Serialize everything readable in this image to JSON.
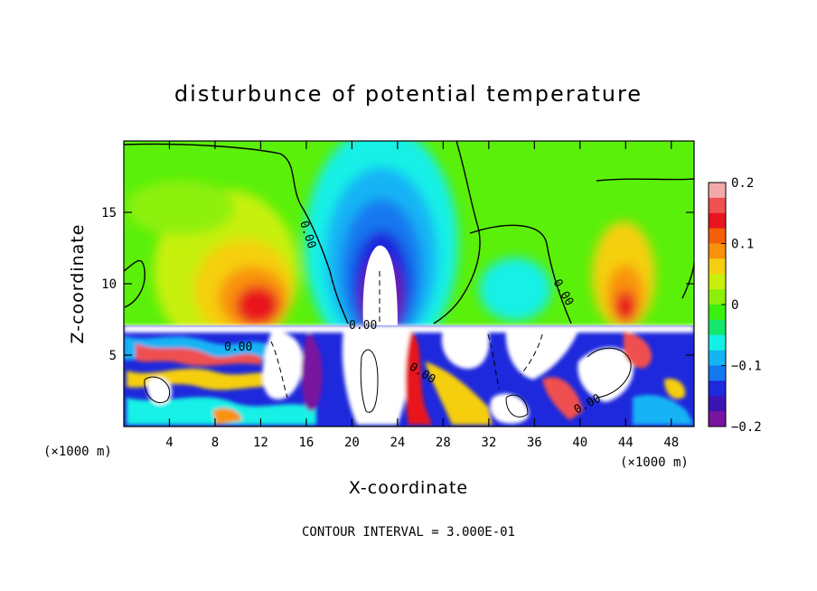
{
  "chart_data": {
    "type": "heatmap",
    "title": "disturbunce of potential temperature",
    "xlabel": "X-coordinate",
    "ylabel": "Z-coordinate",
    "x_unit": "(×1000 m)",
    "x_unit_right": "(×1000 m)",
    "x_ticks": [
      "4",
      "8",
      "12",
      "16",
      "20",
      "24",
      "28",
      "32",
      "36",
      "40",
      "44",
      "48"
    ],
    "y_ticks": [
      "5",
      "10",
      "15"
    ],
    "xlim": [
      0,
      50
    ],
    "ylim": [
      0,
      20
    ],
    "colorbar": {
      "range": [
        -0.2,
        0.2
      ],
      "ticks": [
        "0.2",
        "0.1",
        "0",
        "−0.1",
        "−0.2"
      ],
      "colors": [
        "#f4a9a9",
        "#f05050",
        "#e8141e",
        "#f55f0a",
        "#f9920a",
        "#f5cf10",
        "#c8f00a",
        "#8ef00a",
        "#3cf00f",
        "#15e66e",
        "#14f0e6",
        "#14b4f5",
        "#1478f0",
        "#1e28dc",
        "#3c14b4",
        "#7814a0"
      ]
    },
    "contour_labels": [
      "0.00",
      "0.00",
      "0.00",
      "0.00",
      "0.00",
      "0.00"
    ],
    "contour_interval": "CONTOUR INTERVAL = 3.000E-01"
  }
}
